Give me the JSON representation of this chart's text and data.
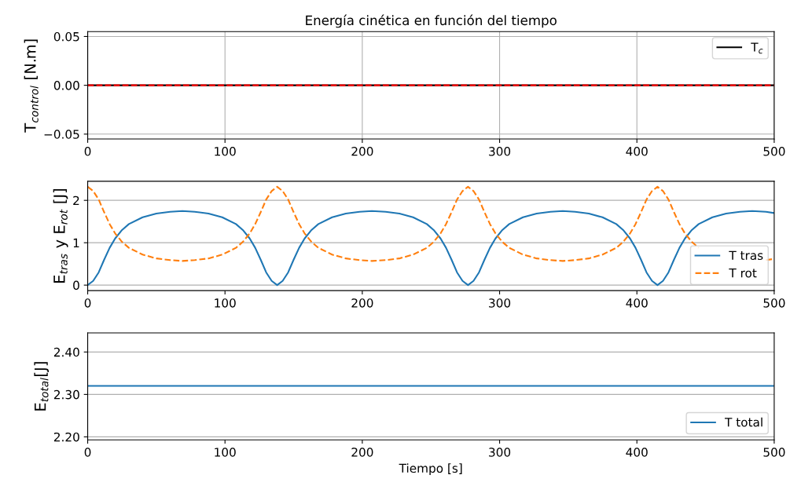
{
  "chart_data": [
    {
      "type": "line",
      "title": "Energía cinética en función del tiempo",
      "ylabel": "T$_{control}$ [N.m]",
      "x": [
        0,
        500
      ],
      "series": [
        {
          "name": "T$_{c}$",
          "color": "#000000",
          "values": [
            0,
            0
          ]
        },
        {
          "color": "#ff0000",
          "line_style": "dashed",
          "values": [
            0,
            0
          ]
        }
      ],
      "xlim": [
        0,
        500
      ],
      "xticks": [
        0,
        100,
        200,
        300,
        400,
        500
      ],
      "ylim": [
        -0.055,
        0.055
      ],
      "yticks": [
        {
          "value": -0.05,
          "label": "−0.05"
        },
        {
          "value": 0,
          "label": "0.00"
        },
        {
          "value": 0.05,
          "label": "0.05"
        }
      ],
      "grid": true,
      "legend": "top right",
      "line_style": "solid"
    },
    {
      "type": "line",
      "ylabel": "E$_{tras}$ y E$_{rot}$ [J]",
      "x": [
        0,
        4,
        8,
        12,
        16,
        20,
        25,
        30,
        40,
        50,
        60,
        69,
        78,
        88,
        98,
        108,
        113,
        118,
        122,
        126,
        130,
        134,
        138,
        142,
        146,
        150,
        154,
        158,
        163,
        168,
        178,
        188,
        198,
        207,
        217,
        227,
        237,
        247,
        252,
        257,
        261,
        265,
        269,
        273,
        277,
        281,
        285,
        289,
        293,
        297,
        302,
        307,
        317,
        327,
        337,
        346,
        355,
        365,
        375,
        385,
        390,
        395,
        399,
        403,
        407,
        411,
        415,
        419,
        423,
        427,
        431,
        435,
        440,
        445,
        455,
        465,
        475,
        484,
        494,
        500
      ],
      "series": [
        {
          "name": "T tras",
          "color": "#1f77b4",
          "line_style": "solid",
          "values": [
            0,
            0.1,
            0.3,
            0.6,
            0.88,
            1.1,
            1.3,
            1.44,
            1.6,
            1.69,
            1.73,
            1.75,
            1.73,
            1.69,
            1.6,
            1.44,
            1.3,
            1.1,
            0.88,
            0.6,
            0.3,
            0.1,
            0,
            0.1,
            0.3,
            0.6,
            0.88,
            1.1,
            1.3,
            1.44,
            1.6,
            1.69,
            1.73,
            1.75,
            1.73,
            1.69,
            1.6,
            1.44,
            1.3,
            1.1,
            0.88,
            0.6,
            0.3,
            0.1,
            0,
            0.1,
            0.3,
            0.6,
            0.88,
            1.1,
            1.3,
            1.44,
            1.6,
            1.69,
            1.73,
            1.75,
            1.73,
            1.69,
            1.6,
            1.44,
            1.3,
            1.1,
            0.88,
            0.6,
            0.3,
            0.1,
            0,
            0.1,
            0.3,
            0.6,
            0.88,
            1.1,
            1.3,
            1.44,
            1.6,
            1.69,
            1.73,
            1.75,
            1.73,
            1.7
          ]
        },
        {
          "name": "T rot",
          "color": "#ff7f0e",
          "line_style": "dashed",
          "values": [
            2.32,
            2.22,
            2.02,
            1.72,
            1.44,
            1.22,
            1.02,
            0.88,
            0.72,
            0.63,
            0.59,
            0.57,
            0.59,
            0.63,
            0.72,
            0.88,
            1.02,
            1.22,
            1.44,
            1.72,
            2.02,
            2.22,
            2.32,
            2.22,
            2.02,
            1.72,
            1.44,
            1.22,
            1.02,
            0.88,
            0.72,
            0.63,
            0.59,
            0.57,
            0.59,
            0.63,
            0.72,
            0.88,
            1.02,
            1.22,
            1.44,
            1.72,
            2.02,
            2.22,
            2.32,
            2.22,
            2.02,
            1.72,
            1.44,
            1.22,
            1.02,
            0.88,
            0.72,
            0.63,
            0.59,
            0.57,
            0.59,
            0.63,
            0.72,
            0.88,
            1.02,
            1.22,
            1.44,
            1.72,
            2.02,
            2.22,
            2.32,
            2.22,
            2.02,
            1.72,
            1.44,
            1.22,
            1.02,
            0.88,
            null,
            null,
            null,
            null,
            0.59,
            0.62
          ]
        }
      ],
      "xlim": [
        0,
        500
      ],
      "xticks": [
        0,
        100,
        200,
        300,
        400,
        500
      ],
      "ylim": [
        -0.13,
        2.45
      ],
      "yticks": [
        0,
        1,
        2
      ],
      "grid": "y",
      "legend": "bottom right"
    },
    {
      "type": "line",
      "ylabel": "E$_{total}$[J]",
      "xlabel": "Tiempo [s]",
      "x": [
        0,
        500
      ],
      "series": [
        {
          "name": "T total",
          "color": "#1f77b4",
          "values": [
            2.32,
            2.32
          ]
        }
      ],
      "xlim": [
        0,
        500
      ],
      "xticks": [
        0,
        100,
        200,
        300,
        400,
        500
      ],
      "ylim": [
        2.193,
        2.445
      ],
      "yticks": [
        {
          "value": 2.2,
          "label": "2.20"
        },
        {
          "value": 2.3,
          "label": "2.30"
        },
        {
          "value": 2.4,
          "label": "2.40"
        }
      ],
      "grid": "y",
      "legend": "bottom right",
      "line_style": "solid"
    }
  ]
}
